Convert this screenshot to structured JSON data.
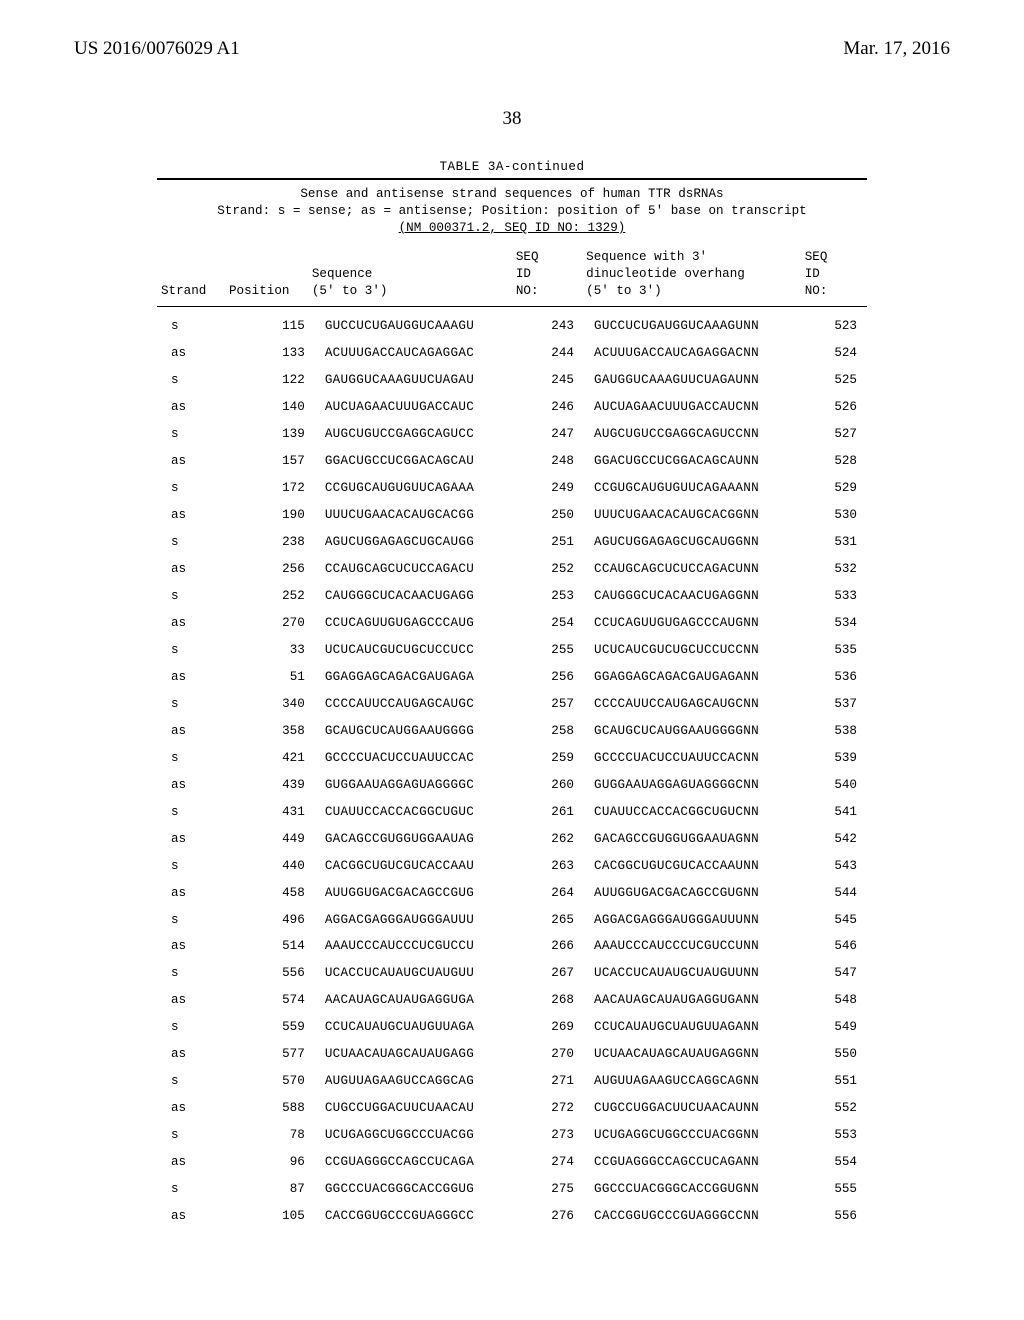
{
  "doc_header": {
    "pub_number": "US 2016/0076029 A1",
    "pub_date": "Mar. 17, 2016",
    "page_number": "38"
  },
  "table": {
    "caption": "TABLE 3A-continued",
    "subtitle_line1": "Sense and antisense strand sequences of human TTR dsRNAs",
    "subtitle_line2": "Strand: s = sense; as = antisense; Position: position of 5' base on transcript",
    "subtitle_line3": "(NM_000371.2, SEQ ID NO: 1329)",
    "col_headers": {
      "strand": "Strand",
      "position": "Position",
      "sequence_label": "Sequence",
      "sequence_sub": "(5' to 3')",
      "seqid": "SEQ\nID\nNO:",
      "seq3_label": "Sequence with 3'",
      "seq3_sub1": "dinucleotide overhang",
      "seq3_sub2": "(5' to 3')",
      "seqid2": "SEQ\nID\nNO:"
    },
    "rows": [
      {
        "strand": "s",
        "pos": "115",
        "seq": "GUCCUCUGAUGGUCAAAGU",
        "id": "243",
        "seq3": "GUCCUCUGAUGGUCAAAGUNN",
        "id2": "523"
      },
      {
        "strand": "as",
        "pos": "133",
        "seq": "ACUUUGACCAUCAGAGGAC",
        "id": "244",
        "seq3": "ACUUUGACCAUCAGAGGACNN",
        "id2": "524"
      },
      {
        "strand": "s",
        "pos": "122",
        "seq": "GAUGGUCAAAGUUCUAGAU",
        "id": "245",
        "seq3": "GAUGGUCAAAGUUCUAGAUNN",
        "id2": "525"
      },
      {
        "strand": "as",
        "pos": "140",
        "seq": "AUCUAGAACUUUGACCAUC",
        "id": "246",
        "seq3": "AUCUAGAACUUUGACCAUCNN",
        "id2": "526"
      },
      {
        "strand": "s",
        "pos": "139",
        "seq": "AUGCUGUCCGAGGCAGUCC",
        "id": "247",
        "seq3": "AUGCUGUCCGAGGCAGUCCNN",
        "id2": "527"
      },
      {
        "strand": "as",
        "pos": "157",
        "seq": "GGACUGCCUCGGACAGCAU",
        "id": "248",
        "seq3": "GGACUGCCUCGGACAGCAUNN",
        "id2": "528"
      },
      {
        "strand": "s",
        "pos": "172",
        "seq": "CCGUGCAUGUGUUCAGAAA",
        "id": "249",
        "seq3": "CCGUGCAUGUGUUCAGAAANN",
        "id2": "529"
      },
      {
        "strand": "as",
        "pos": "190",
        "seq": "UUUCUGAACACAUGCACGG",
        "id": "250",
        "seq3": "UUUCUGAACACAUGCACGGNN",
        "id2": "530"
      },
      {
        "strand": "s",
        "pos": "238",
        "seq": "AGUCUGGAGAGCUGCAUGG",
        "id": "251",
        "seq3": "AGUCUGGAGAGCUGCAUGGNN",
        "id2": "531"
      },
      {
        "strand": "as",
        "pos": "256",
        "seq": "CCAUGCAGCUCUCCAGACU",
        "id": "252",
        "seq3": "CCAUGCAGCUCUCCAGACUNN",
        "id2": "532"
      },
      {
        "strand": "s",
        "pos": "252",
        "seq": "CAUGGGCUCACAACUGAGG",
        "id": "253",
        "seq3": "CAUGGGCUCACAACUGAGGNN",
        "id2": "533"
      },
      {
        "strand": "as",
        "pos": "270",
        "seq": "CCUCAGUUGUGAGCCCAUG",
        "id": "254",
        "seq3": "CCUCAGUUGUGAGCCCAUGNN",
        "id2": "534"
      },
      {
        "strand": "s",
        "pos": "33",
        "seq": "UCUCAUCGUCUGCUCCUCC",
        "id": "255",
        "seq3": "UCUCAUCGUCUGCUCCUCCNN",
        "id2": "535"
      },
      {
        "strand": "as",
        "pos": "51",
        "seq": "GGAGGAGCAGACGAUGAGA",
        "id": "256",
        "seq3": "GGAGGAGCAGACGAUGAGANN",
        "id2": "536"
      },
      {
        "strand": "s",
        "pos": "340",
        "seq": "CCCCAUUCCAUGAGCAUGC",
        "id": "257",
        "seq3": "CCCCAUUCCAUGAGCAUGCNN",
        "id2": "537"
      },
      {
        "strand": "as",
        "pos": "358",
        "seq": "GCAUGCUCAUGGAAUGGGG",
        "id": "258",
        "seq3": "GCAUGCUCAUGGAAUGGGGNN",
        "id2": "538"
      },
      {
        "strand": "s",
        "pos": "421",
        "seq": "GCCCCUACUCCUAUUCCAC",
        "id": "259",
        "seq3": "GCCCCUACUCCUAUUCCACNN",
        "id2": "539"
      },
      {
        "strand": "as",
        "pos": "439",
        "seq": "GUGGAAUAGGAGUAGGGGC",
        "id": "260",
        "seq3": "GUGGAAUAGGAGUAGGGGCNN",
        "id2": "540"
      },
      {
        "strand": "s",
        "pos": "431",
        "seq": "CUAUUCCACCACGGCUGUC",
        "id": "261",
        "seq3": "CUAUUCCACCACGGCUGUCNN",
        "id2": "541"
      },
      {
        "strand": "as",
        "pos": "449",
        "seq": "GACAGCCGUGGUGGAAUAG",
        "id": "262",
        "seq3": "GACAGCCGUGGUGGAAUAGNN",
        "id2": "542"
      },
      {
        "strand": "s",
        "pos": "440",
        "seq": "CACGGCUGUCGUCACCAAU",
        "id": "263",
        "seq3": "CACGGCUGUCGUCACCAAUNN",
        "id2": "543"
      },
      {
        "strand": "as",
        "pos": "458",
        "seq": "AUUGGUGACGACAGCCGUG",
        "id": "264",
        "seq3": "AUUGGUGACGACAGCCGUGNN",
        "id2": "544"
      },
      {
        "strand": "s",
        "pos": "496",
        "seq": "AGGACGAGGGAUGGGAUUU",
        "id": "265",
        "seq3": "AGGACGAGGGAUGGGAUUUNN",
        "id2": "545"
      },
      {
        "strand": "as",
        "pos": "514",
        "seq": "AAAUCCCAUCCCUCGUCCU",
        "id": "266",
        "seq3": "AAAUCCCAUCCCUCGUCCUNN",
        "id2": "546"
      },
      {
        "strand": "s",
        "pos": "556",
        "seq": "UCACCUCAUAUGCUAUGUU",
        "id": "267",
        "seq3": "UCACCUCAUAUGCUAUGUUNN",
        "id2": "547"
      },
      {
        "strand": "as",
        "pos": "574",
        "seq": "AACAUAGCAUAUGAGGUGA",
        "id": "268",
        "seq3": "AACAUAGCAUAUGAGGUGANN",
        "id2": "548"
      },
      {
        "strand": "s",
        "pos": "559",
        "seq": "CCUCAUAUGCUAUGUUAGA",
        "id": "269",
        "seq3": "CCUCAUAUGCUAUGUUAGANN",
        "id2": "549"
      },
      {
        "strand": "as",
        "pos": "577",
        "seq": "UCUAACAUAGCAUAUGAGG",
        "id": "270",
        "seq3": "UCUAACAUAGCAUAUGAGGNN",
        "id2": "550"
      },
      {
        "strand": "s",
        "pos": "570",
        "seq": "AUGUUAGAAGUCCAGGCAG",
        "id": "271",
        "seq3": "AUGUUAGAAGUCCAGGCAGNN",
        "id2": "551"
      },
      {
        "strand": "as",
        "pos": "588",
        "seq": "CUGCCUGGACUUCUAACAU",
        "id": "272",
        "seq3": "CUGCCUGGACUUCUAACAUNN",
        "id2": "552"
      },
      {
        "strand": "s",
        "pos": "78",
        "seq": "UCUGAGGCUGGCCCUACGG",
        "id": "273",
        "seq3": "UCUGAGGCUGGCCCUACGGNN",
        "id2": "553"
      },
      {
        "strand": "as",
        "pos": "96",
        "seq": "CCGUAGGGCCAGCCUCAGA",
        "id": "274",
        "seq3": "CCGUAGGGCCAGCCUCAGANN",
        "id2": "554"
      },
      {
        "strand": "s",
        "pos": "87",
        "seq": "GGCCCUACGGGCACCGGUG",
        "id": "275",
        "seq3": "GGCCCUACGGGCACCGGUGNN",
        "id2": "555"
      },
      {
        "strand": "as",
        "pos": "105",
        "seq": "CACCGGUGCCCGUAGGGCC",
        "id": "276",
        "seq3": "CACCGGUGCCCGUAGGGCCNN",
        "id2": "556"
      }
    ]
  }
}
